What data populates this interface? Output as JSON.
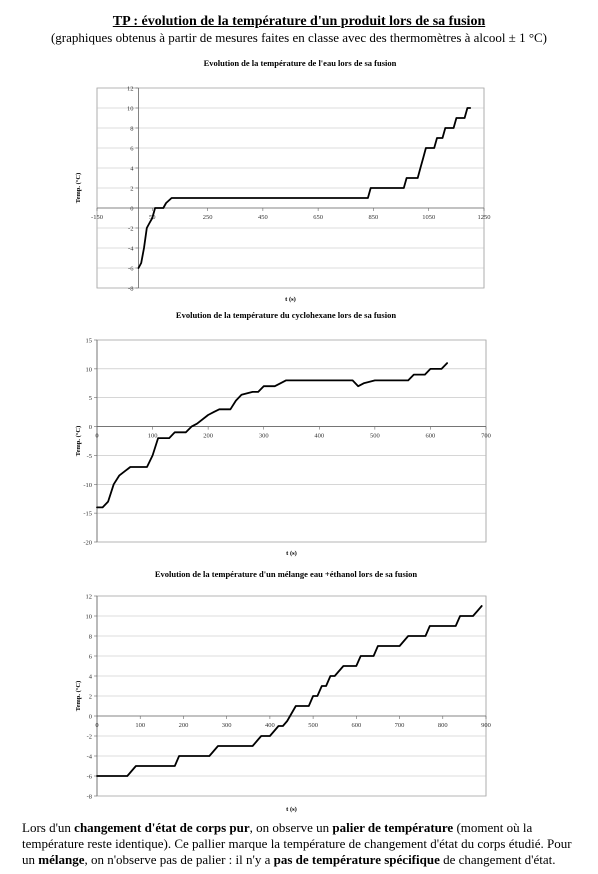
{
  "header": {
    "title": "TP : évolution de la température d'un produit lors de sa fusion",
    "subtitle": "(graphiques obtenus à partir de mesures faites en classe avec des thermomètres à alcool ± 1 °C)"
  },
  "chart_data": [
    {
      "type": "line",
      "title": "Evolution de la température de l'eau lors de sa fusion",
      "xlabel": "t (s)",
      "ylabel": "Temp. (°C)",
      "xlim": [
        -150,
        1250
      ],
      "ylim": [
        -8,
        12
      ],
      "xticks": [
        -150,
        50,
        250,
        450,
        650,
        850,
        1050,
        1250
      ],
      "yticks": [
        -8,
        -6,
        -4,
        -2,
        0,
        2,
        4,
        6,
        8,
        10,
        12
      ],
      "grid": "horizontal",
      "series": [
        {
          "x": [
            0,
            10,
            20,
            30,
            40,
            50,
            60,
            70,
            80,
            90,
            100,
            120,
            300,
            600,
            800,
            830,
            840,
            850,
            900,
            950,
            960,
            970,
            990,
            1010,
            1020,
            1030,
            1040,
            1060,
            1070,
            1080,
            1100,
            1110,
            1120,
            1140,
            1150,
            1160,
            1180,
            1190,
            1200
          ],
          "y": [
            -6,
            -5.5,
            -4,
            -2,
            -1.5,
            -1,
            0,
            0,
            0,
            0,
            0.5,
            1,
            1,
            1,
            1,
            1,
            2,
            2,
            2,
            2,
            2,
            3,
            3,
            3,
            4,
            5,
            6,
            6,
            6,
            7,
            7,
            8,
            8,
            8,
            9,
            9,
            9,
            10,
            10
          ]
        }
      ]
    },
    {
      "type": "line",
      "title": "Evolution de la température du cyclohexane lors de sa fusion",
      "xlabel": "t (s)",
      "ylabel": "Temp. (°C)",
      "xlim": [
        0,
        700
      ],
      "ylim": [
        -20,
        15
      ],
      "xticks": [
        0,
        100,
        200,
        300,
        400,
        500,
        600,
        700
      ],
      "yticks": [
        -20,
        -15,
        -10,
        -5,
        0,
        5,
        10,
        15
      ],
      "grid": "horizontal",
      "series": [
        {
          "x": [
            0,
            10,
            20,
            30,
            40,
            60,
            80,
            90,
            100,
            110,
            130,
            140,
            150,
            160,
            170,
            180,
            200,
            210,
            220,
            240,
            250,
            260,
            280,
            290,
            300,
            320,
            330,
            340,
            400,
            440,
            450,
            460,
            470,
            480,
            500,
            550,
            560,
            570,
            580,
            590,
            600,
            610,
            620,
            630
          ],
          "y": [
            -14,
            -14,
            -13,
            -10,
            -8.5,
            -7,
            -7,
            -7,
            -5,
            -2,
            -2,
            -1,
            -1,
            -1,
            0,
            0.5,
            2,
            2.5,
            3,
            3,
            4.5,
            5.5,
            6,
            6,
            7,
            7,
            7.5,
            8,
            8,
            8,
            8,
            8,
            7,
            7.5,
            8,
            8,
            8,
            9,
            9,
            9,
            10,
            10,
            10,
            11
          ]
        }
      ]
    },
    {
      "type": "line",
      "title": "Evolution de la température d'un mélange eau +éthanol lors de sa fusion",
      "xlabel": "t (s)",
      "ylabel": "Temp. (°C)",
      "xlim": [
        0,
        900
      ],
      "ylim": [
        -8,
        12
      ],
      "xticks": [
        0,
        100,
        200,
        300,
        400,
        500,
        600,
        700,
        800,
        900
      ],
      "yticks": [
        -8,
        -6,
        -4,
        -2,
        0,
        2,
        4,
        6,
        8,
        10,
        12
      ],
      "grid": "horizontal",
      "series": [
        {
          "x": [
            0,
            60,
            70,
            80,
            90,
            150,
            160,
            180,
            190,
            240,
            260,
            270,
            280,
            340,
            350,
            360,
            370,
            380,
            400,
            410,
            420,
            430,
            440,
            460,
            470,
            480,
            490,
            500,
            510,
            520,
            530,
            540,
            550,
            570,
            580,
            600,
            610,
            620,
            640,
            650,
            660,
            680,
            700,
            720,
            730,
            740,
            760,
            770,
            780,
            800,
            820,
            830,
            840,
            850,
            870,
            880,
            890
          ],
          "y": [
            -6,
            -6,
            -6,
            -5.5,
            -5,
            -5,
            -5,
            -5,
            -4,
            -4,
            -4,
            -3.5,
            -3,
            -3,
            -3,
            -3,
            -2.5,
            -2,
            -2,
            -1.5,
            -1,
            -1,
            -0.5,
            1,
            1,
            1,
            1,
            2,
            2,
            3,
            3,
            4,
            4,
            5,
            5,
            5,
            6,
            6,
            6,
            7,
            7,
            7,
            7,
            8,
            8,
            8,
            8,
            9,
            9,
            9,
            9,
            9,
            10,
            10,
            10,
            10.5,
            11
          ]
        }
      ]
    }
  ],
  "footer": {
    "p1": "Lors d'un ",
    "b1": "changement d'état de corps pur",
    "p2": ", on observe un ",
    "b2": "palier de température",
    "p3": " (moment où la température reste identique). Ce pallier marque la température de changement d'état du corps étudié. Pour un ",
    "b3": "mélange",
    "p4": ", on n'observe pas de palier : il n'y a ",
    "b4": "pas de température spécifique",
    "p5": " de changement d'état."
  }
}
